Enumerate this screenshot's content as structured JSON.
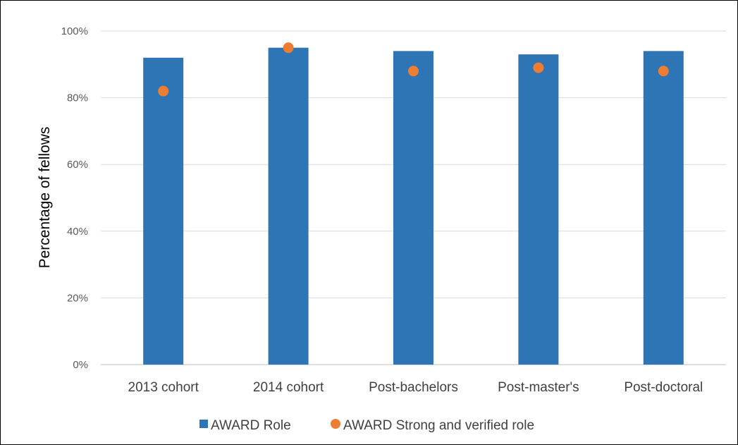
{
  "chart_data": {
    "type": "bar",
    "title": "",
    "xlabel": "",
    "ylabel": "Percentage of fellows",
    "ylim": [
      0,
      100
    ],
    "y_tick_format": "percent",
    "y_ticks": [
      "0%",
      "20%",
      "40%",
      "60%",
      "80%",
      "100%"
    ],
    "categories": [
      "2013 cohort",
      "2014 cohort",
      "Post-bachelors",
      "Post-master's",
      "Post-doctoral"
    ],
    "series": [
      {
        "name": "AWARD Role",
        "type": "bar",
        "color": "#2E75B6",
        "values": [
          92,
          95,
          94,
          93,
          94
        ]
      },
      {
        "name": "AWARD Strong and verified role",
        "type": "marker",
        "color": "#ED7D31",
        "values": [
          82,
          95,
          88,
          89,
          88
        ]
      }
    ],
    "grid": true,
    "legend_position": "bottom"
  }
}
